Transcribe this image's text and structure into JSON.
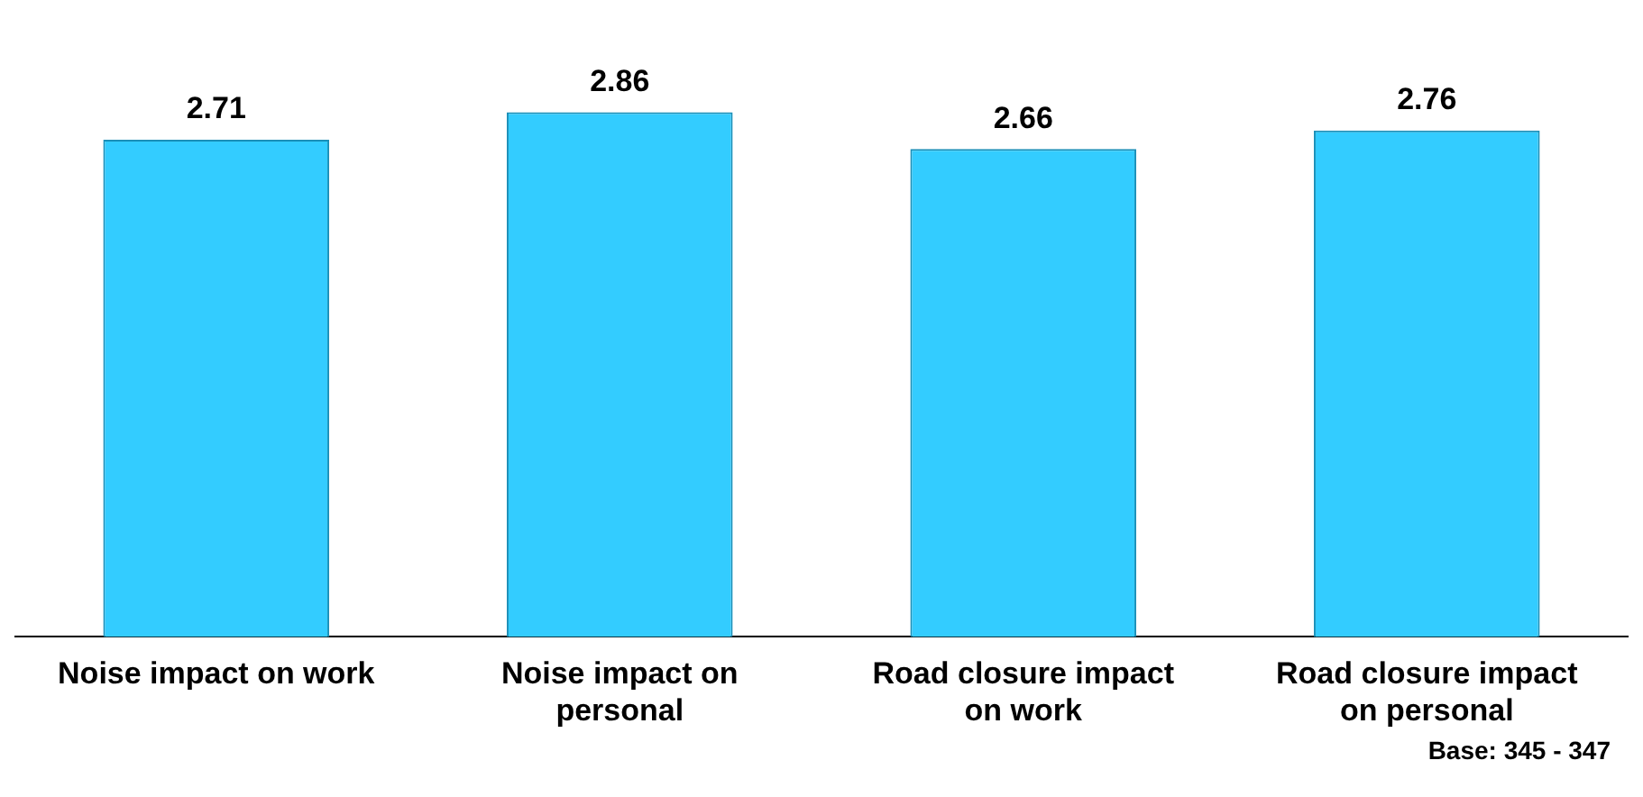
{
  "chart_data": {
    "type": "bar",
    "categories": [
      "Noise impact on work",
      "Noise impact on personal",
      "Road closure impact on work",
      "Road closure impact on personal"
    ],
    "values": [
      2.71,
      2.86,
      2.66,
      2.76
    ],
    "color": "#33ccff",
    "data_labels": true,
    "grid": false,
    "legend": false,
    "tick_labels": "x",
    "annotations": [
      "Base: 345 - 347"
    ]
  }
}
